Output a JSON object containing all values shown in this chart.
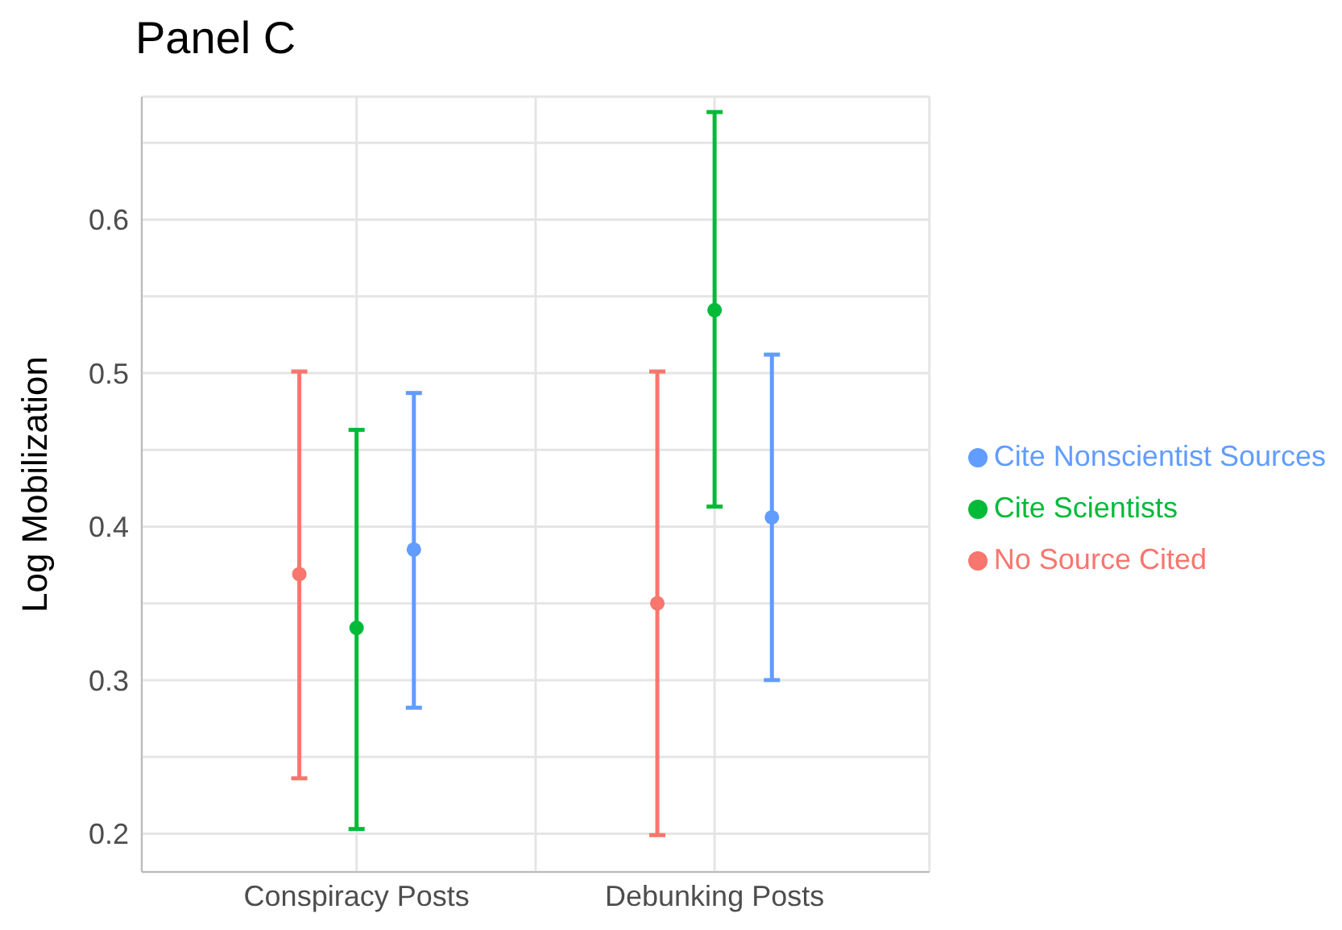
{
  "chart_data": {
    "type": "scatter",
    "title": "Panel C",
    "ylabel": "Log Mobilization",
    "categories": [
      "Conspiracy Posts",
      "Debunking Posts"
    ],
    "series": [
      {
        "name": "No Source Cited",
        "color": "#f8766d",
        "values": [
          0.369,
          0.35
        ],
        "errors": [
          [
            0.236,
            0.501
          ],
          [
            0.199,
            0.501
          ]
        ]
      },
      {
        "name": "Cite Scientists",
        "color": "#00ba38",
        "values": [
          0.334,
          0.541
        ],
        "errors": [
          [
            0.203,
            0.463
          ],
          [
            0.413,
            0.67
          ]
        ]
      },
      {
        "name": "Cite Nonscientist Sources",
        "color": "#619cff",
        "values": [
          0.385,
          0.406
        ],
        "errors": [
          [
            0.282,
            0.487
          ],
          [
            0.3,
            0.512
          ]
        ]
      }
    ],
    "ylim": [
      0.175,
      0.68
    ],
    "yticks": [
      0.2,
      {
        "value": 0.25,
        "label": null
      },
      0.3,
      {
        "value": 0.35,
        "label": null
      },
      0.4,
      {
        "value": 0.45,
        "label": null
      },
      0.5,
      {
        "value": 0.55,
        "label": null
      },
      0.6,
      {
        "value": 0.65,
        "label": null
      }
    ],
    "grid": true,
    "legend": "right",
    "marker": "circle"
  }
}
